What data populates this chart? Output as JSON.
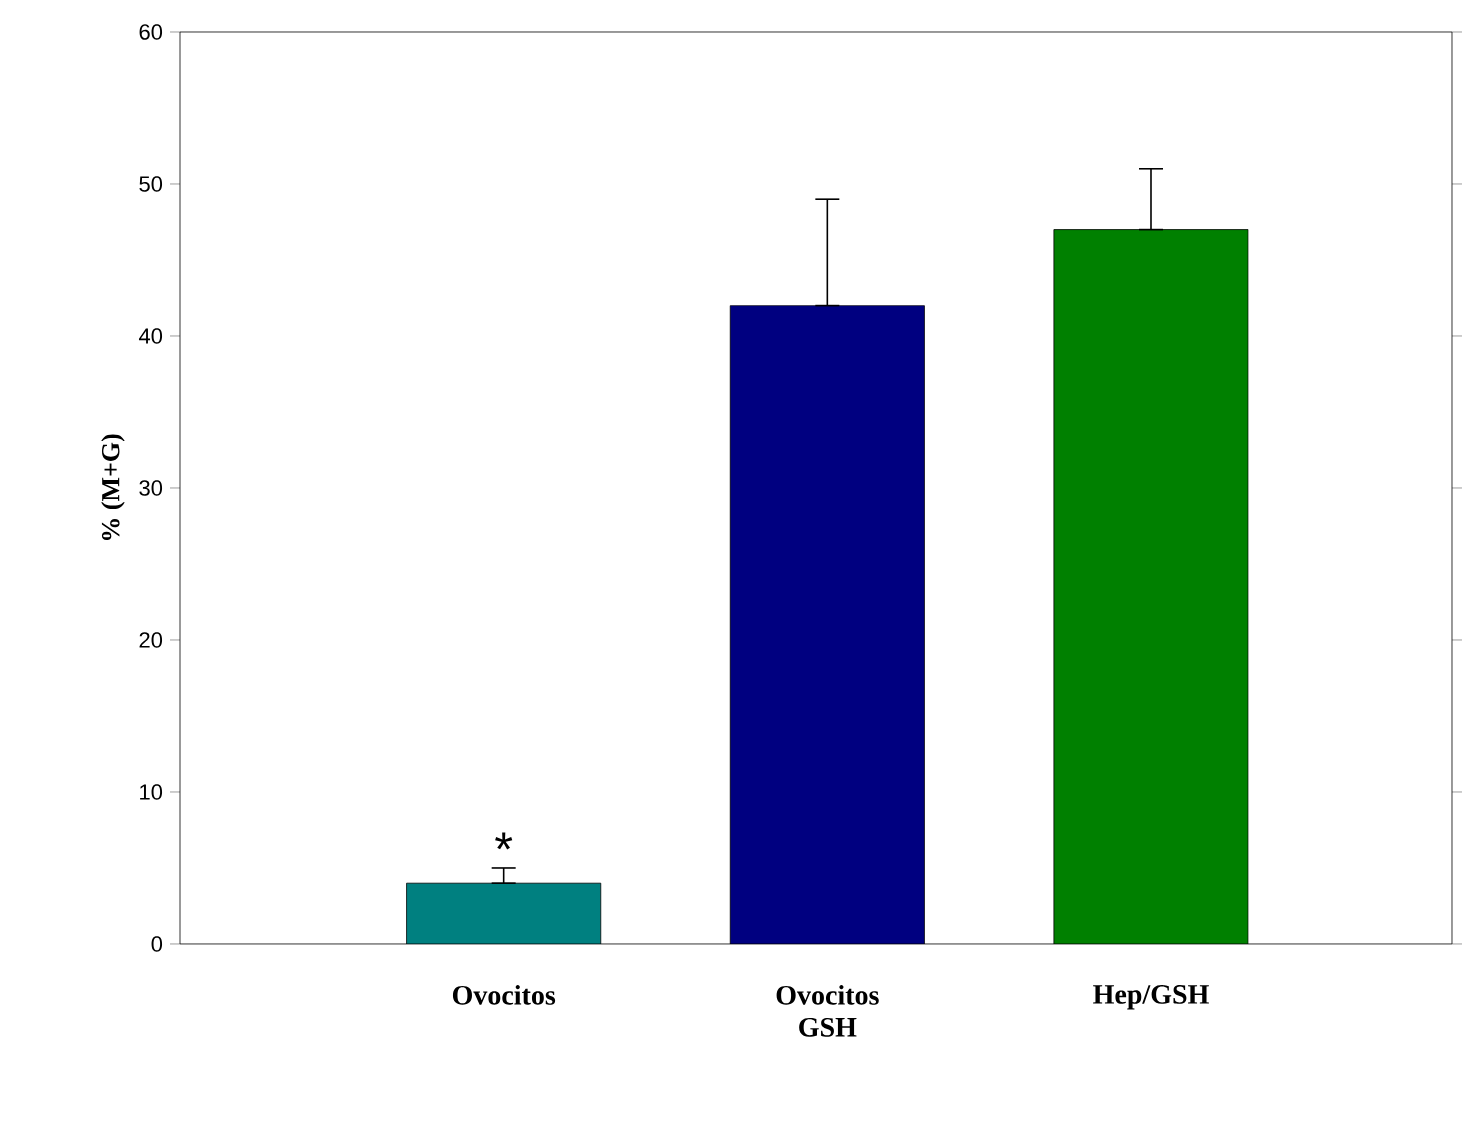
{
  "chart_data": {
    "type": "bar",
    "ylabel": "% (M+G)",
    "categories": [
      "Ovocitos",
      "Ovocitos GSH",
      "Hep/GSH"
    ],
    "values": [
      4,
      42,
      47
    ],
    "errors": [
      [
        4,
        5
      ],
      [
        42,
        49
      ],
      [
        47,
        51
      ]
    ],
    "colors": [
      "#008080",
      "#000080",
      "#008000"
    ],
    "ylim": [
      0,
      60
    ],
    "yticks": [
      0,
      10,
      20,
      30,
      40,
      50,
      60
    ],
    "annotations": [
      {
        "text": "*",
        "x": "Ovocitos",
        "y": 5
      }
    ],
    "grid": false
  }
}
